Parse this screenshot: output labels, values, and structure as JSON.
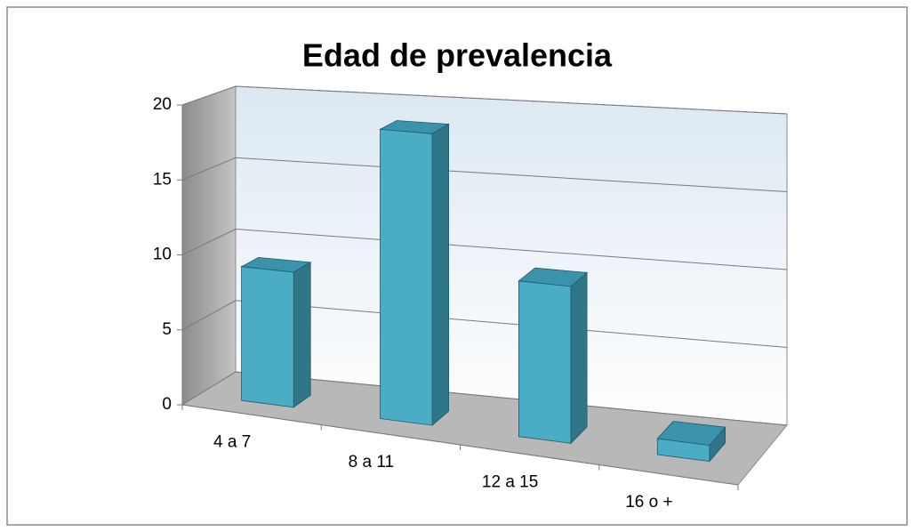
{
  "chart_data": {
    "type": "bar3d",
    "title": "Edad de prevalencia",
    "categories": [
      "4 a 7",
      "8 a 11",
      "12 a 15",
      "16 o +"
    ],
    "values": [
      9,
      19,
      10,
      1
    ],
    "color": "#4bacc6",
    "ylim": [
      0,
      20
    ],
    "yticks": [
      0,
      5,
      10,
      15,
      20
    ],
    "grid": true
  }
}
